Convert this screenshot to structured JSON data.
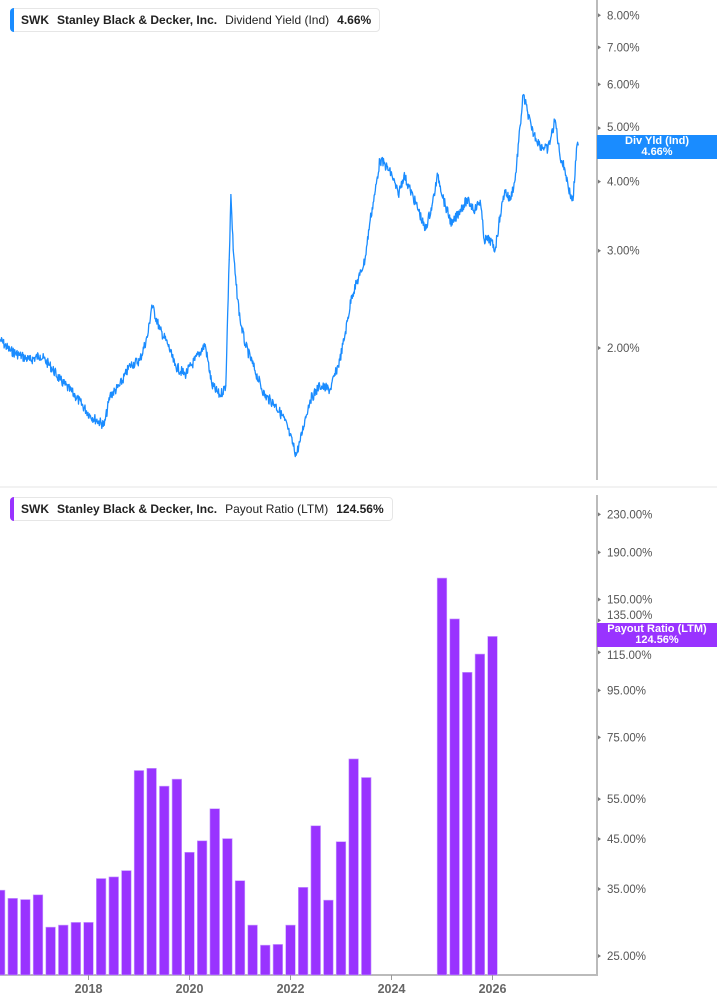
{
  "chart_data": [
    {
      "type": "line",
      "ticker": "SWK",
      "company": "Stanley Black & Decker, Inc.",
      "metric": "Dividend Yield (Ind)",
      "current_value": "4.66%",
      "badge_label": "Div Yld (Ind)",
      "badge_value": "4.66%",
      "color": "#1a8cff",
      "y_scale": "log",
      "ylim": [
        1.2,
        8.4
      ],
      "y_ticks": [
        "8.00%",
        "7.00%",
        "6.00%",
        "5.00%",
        "4.00%",
        "3.00%",
        "2.00%"
      ],
      "y_tick_values": [
        8,
        7,
        6,
        5,
        4,
        3,
        2
      ],
      "grid": false,
      "x": [
        2016.17,
        2016.34,
        2016.52,
        2016.69,
        2016.87,
        2017.04,
        2017.22,
        2017.48,
        2017.74,
        2017.99,
        2018.09,
        2018.26,
        2018.44,
        2018.61,
        2018.75,
        2018.82,
        2018.96,
        2019.1,
        2019.22,
        2019.4,
        2019.57,
        2019.75,
        2019.87,
        2020.01,
        2020.11,
        2020.17,
        2020.2,
        2020.24,
        2020.29,
        2020.36,
        2020.45,
        2020.62,
        2020.79,
        2020.97,
        2021.14,
        2021.23,
        2021.34,
        2021.41,
        2021.49,
        2021.58,
        2021.75,
        2021.93,
        2022.1,
        2022.19,
        2022.31,
        2022.45,
        2022.54,
        2022.63,
        2022.71,
        2022.8,
        2022.89,
        2023.01,
        2023.12,
        2023.22,
        2023.33,
        2023.47,
        2023.59,
        2023.71,
        2023.81,
        2023.94,
        2024.06,
        2024.2,
        2024.32,
        2024.46,
        2024.55,
        2024.62,
        2024.72,
        2024.81,
        2024.9,
        2024.98,
        2025.07,
        2025.16,
        2025.25,
        2025.3,
        2025.37,
        2025.45,
        2025.59,
        2025.73,
        2025.86,
        2025.94,
        2026.03,
        2026.12,
        2026.17,
        2026.24,
        2026.26
      ],
      "values": [
        2.07,
        1.98,
        1.94,
        1.9,
        1.94,
        1.86,
        1.75,
        1.64,
        1.51,
        1.45,
        1.64,
        1.71,
        1.86,
        1.9,
        2.11,
        2.39,
        2.16,
        2.03,
        1.86,
        1.79,
        1.9,
        2.03,
        1.71,
        1.64,
        1.71,
        2.89,
        3.79,
        3.01,
        2.6,
        2.25,
        2.03,
        1.82,
        1.64,
        1.58,
        1.48,
        1.39,
        1.28,
        1.36,
        1.48,
        1.61,
        1.71,
        1.68,
        1.9,
        2.11,
        2.49,
        2.71,
        2.89,
        3.41,
        3.79,
        4.38,
        4.29,
        4.11,
        3.79,
        4.11,
        3.86,
        3.56,
        3.27,
        3.62,
        4.11,
        3.62,
        3.34,
        3.56,
        3.7,
        3.56,
        3.7,
        3.14,
        3.14,
        3.01,
        3.48,
        3.86,
        3.7,
        4.03,
        5.06,
        5.74,
        5.39,
        4.96,
        4.66,
        4.57,
        5.17,
        4.47,
        4.2,
        3.79,
        3.7,
        4.66,
        4.66
      ]
    },
    {
      "type": "bar",
      "ticker": "SWK",
      "company": "Stanley Black & Decker, Inc.",
      "metric": "Payout Ratio (LTM)",
      "current_value": "124.56%",
      "badge_label": "Payout Ratio (LTM)",
      "badge_value": "124.56%",
      "color": "#9933ff",
      "y_scale": "log",
      "ylim": [
        24,
        240
      ],
      "y_ticks": [
        "230.00%",
        "190.00%",
        "150.00%",
        "135.00%",
        "115.00%",
        "95.00%",
        "75.00%",
        "55.00%",
        "45.00%",
        "35.00%",
        "25.00%"
      ],
      "y_tick_values": [
        230,
        190,
        150,
        135,
        115,
        95,
        75,
        55,
        45,
        35,
        25
      ],
      "x_ticks": [
        "2018",
        "2020",
        "2022",
        "2024",
        "2026"
      ],
      "x_tick_values": [
        2018,
        2020,
        2022,
        2024,
        2026
      ],
      "grid": false,
      "x": [
        2016.25,
        2016.5,
        2016.75,
        2017.0,
        2017.25,
        2017.5,
        2017.75,
        2018.0,
        2018.25,
        2018.5,
        2018.75,
        2019.0,
        2019.25,
        2019.5,
        2019.75,
        2020.0,
        2020.25,
        2020.5,
        2020.75,
        2021.0,
        2021.25,
        2021.5,
        2021.75,
        2022.0,
        2022.25,
        2022.5,
        2022.75,
        2023.0,
        2023.25,
        2023.5,
        2025.0,
        2025.25,
        2025.5,
        2025.75,
        2026.0
      ],
      "values": [
        34.8,
        33.4,
        33.2,
        34.0,
        28.9,
        29.2,
        29.6,
        29.6,
        36.9,
        37.2,
        38.4,
        63.5,
        64.2,
        58.7,
        60.8,
        42.1,
        44.6,
        52.4,
        45.1,
        36.5,
        29.2,
        26.4,
        26.5,
        29.2,
        35.3,
        48.1,
        33.1,
        44.4,
        67.3,
        61.3,
        167,
        136,
        104,
        114,
        124.56
      ]
    }
  ]
}
